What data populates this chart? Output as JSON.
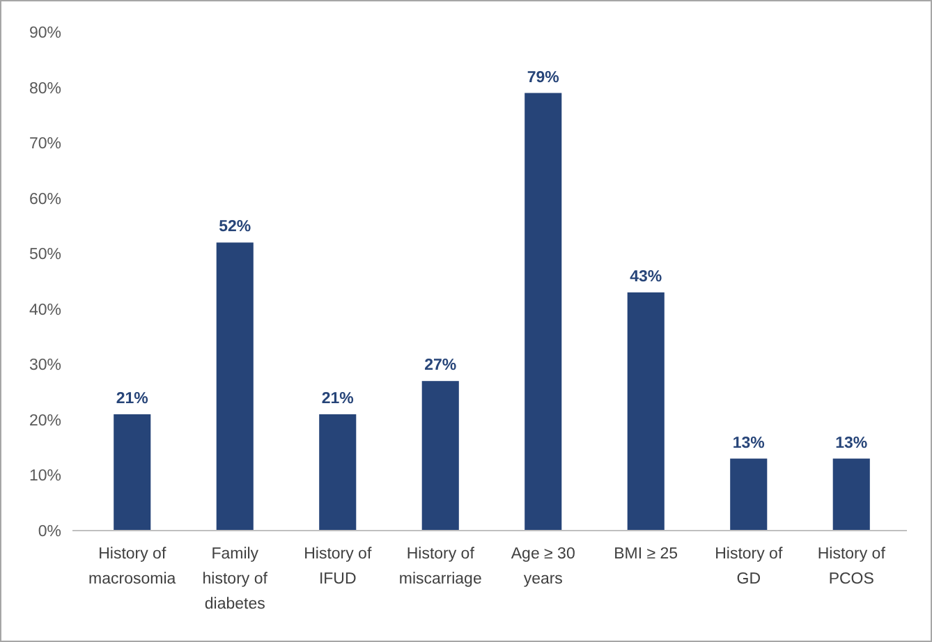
{
  "chart_data": {
    "type": "bar",
    "categories": [
      "History of macrosomia",
      "Family history of diabetes",
      "History of IFUD",
      "History of miscarriage",
      "Age ≥ 30 years",
      "BMI ≥ 25",
      "History of GD",
      "History of PCOS"
    ],
    "values": [
      21,
      52,
      21,
      27,
      79,
      43,
      13,
      13
    ],
    "value_labels": [
      "21%",
      "52%",
      "21%",
      "27%",
      "79%",
      "43%",
      "13%",
      "13%"
    ],
    "color": "#264478",
    "ylim": [
      0,
      90
    ],
    "yticks": [
      {
        "value": 0,
        "label": "0%"
      },
      {
        "value": 10,
        "label": "10%"
      },
      {
        "value": 20,
        "label": "20%"
      },
      {
        "value": 30,
        "label": "30%"
      },
      {
        "value": 40,
        "label": "40%"
      },
      {
        "value": 50,
        "label": "50%"
      },
      {
        "value": 60,
        "label": "60%"
      },
      {
        "value": 70,
        "label": "70%"
      },
      {
        "value": 80,
        "label": "80%"
      },
      {
        "value": 90,
        "label": "90%"
      }
    ],
    "grid": false
  }
}
